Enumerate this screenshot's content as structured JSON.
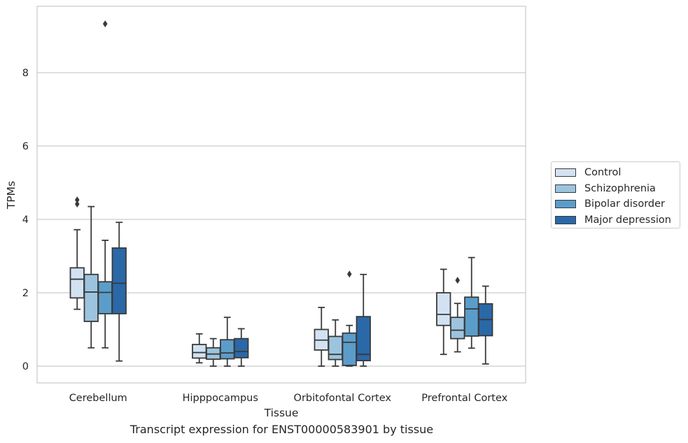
{
  "chart_data": {
    "type": "boxplot",
    "caption": "Transcript expression for ENST00000583901 by tissue",
    "xlabel": "Tissue",
    "ylabel": "TPMs",
    "ylim": [
      -0.45,
      9.8
    ],
    "yticks": [
      0,
      2,
      4,
      6,
      8
    ],
    "grid": true,
    "legend_position": "right",
    "categories": [
      "Cerebellum",
      "Hipppocampus",
      "Orbitofontal Cortex",
      "Prefrontal Cortex"
    ],
    "series": [
      {
        "name": "Control",
        "color": "#d2e2f2",
        "boxes": [
          {
            "whislo": 1.55,
            "q1": 1.86,
            "med": 2.37,
            "q3": 2.68,
            "whishi": 3.72,
            "fliers": [
              4.42,
              4.53
            ]
          },
          {
            "whislo": 0.09,
            "q1": 0.22,
            "med": 0.37,
            "q3": 0.59,
            "whishi": 0.88,
            "fliers": []
          },
          {
            "whislo": 0.0,
            "q1": 0.44,
            "med": 0.71,
            "q3": 1.0,
            "whishi": 1.6,
            "fliers": []
          },
          {
            "whislo": 0.32,
            "q1": 1.11,
            "med": 1.41,
            "q3": 2.0,
            "whishi": 2.64,
            "fliers": []
          }
        ]
      },
      {
        "name": "Schizophrenia",
        "color": "#9dc4de",
        "boxes": [
          {
            "whislo": 0.5,
            "q1": 1.22,
            "med": 2.02,
            "q3": 2.5,
            "whishi": 4.35,
            "fliers": []
          },
          {
            "whislo": 0.0,
            "q1": 0.19,
            "med": 0.33,
            "q3": 0.5,
            "whishi": 0.75,
            "fliers": []
          },
          {
            "whislo": 0.0,
            "q1": 0.18,
            "med": 0.32,
            "q3": 0.81,
            "whishi": 1.26,
            "fliers": []
          },
          {
            "whislo": 0.39,
            "q1": 0.75,
            "med": 0.98,
            "q3": 1.33,
            "whishi": 1.71,
            "fliers": [
              2.34
            ]
          }
        ]
      },
      {
        "name": "Bipolar disorder",
        "color": "#5b9dca",
        "boxes": [
          {
            "whislo": 0.5,
            "q1": 1.43,
            "med": 2.01,
            "q3": 2.3,
            "whishi": 3.43,
            "fliers": [
              9.33
            ]
          },
          {
            "whislo": 0.0,
            "q1": 0.2,
            "med": 0.36,
            "q3": 0.72,
            "whishi": 1.33,
            "fliers": []
          },
          {
            "whislo": 0.0,
            "q1": 0.02,
            "med": 0.65,
            "q3": 0.9,
            "whishi": 1.11,
            "fliers": [
              2.51
            ]
          },
          {
            "whislo": 0.49,
            "q1": 0.82,
            "med": 1.56,
            "q3": 1.88,
            "whishi": 2.96,
            "fliers": []
          }
        ]
      },
      {
        "name": "Major depression",
        "color": "#2a68a8",
        "boxes": [
          {
            "whislo": 0.14,
            "q1": 1.43,
            "med": 2.26,
            "q3": 3.22,
            "whishi": 3.92,
            "fliers": []
          },
          {
            "whislo": 0.0,
            "q1": 0.23,
            "med": 0.4,
            "q3": 0.75,
            "whishi": 1.02,
            "fliers": []
          },
          {
            "whislo": 0.0,
            "q1": 0.15,
            "med": 0.32,
            "q3": 1.35,
            "whishi": 2.5,
            "fliers": []
          },
          {
            "whislo": 0.06,
            "q1": 0.83,
            "med": 1.27,
            "q3": 1.7,
            "whishi": 2.18,
            "fliers": []
          }
        ]
      }
    ]
  }
}
